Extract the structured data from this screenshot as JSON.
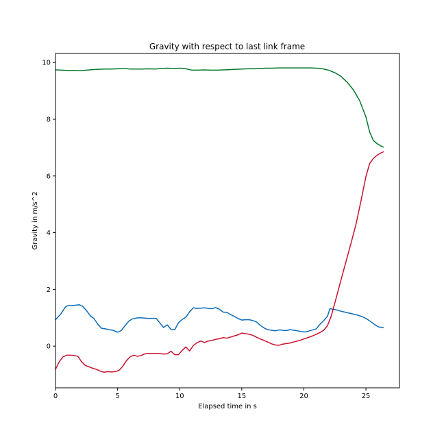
{
  "chart_data": {
    "type": "line",
    "title": "Gravity with respect to last link frame",
    "xlabel": "Elapsed time in s",
    "ylabel": "Gravity in m/s^2",
    "xlim": [
      0,
      27.7
    ],
    "ylim": [
      -1.47,
      10.32
    ],
    "xticks": [
      0,
      5,
      10,
      15,
      20,
      25
    ],
    "yticks": [
      0,
      2,
      4,
      6,
      8,
      10
    ],
    "grid": false,
    "legend": "none",
    "series": [
      {
        "color": "#0a6bb8",
        "x": [
          0,
          0.4,
          0.8,
          1.0,
          1.3,
          1.6,
          1.9,
          2.2,
          2.5,
          2.8,
          3.1,
          3.4,
          3.7,
          4.0,
          4.3,
          4.6,
          5.0,
          5.3,
          5.6,
          5.9,
          6.2,
          6.5,
          6.8,
          7.1,
          7.4,
          7.8,
          8.1,
          8.4,
          8.7,
          9.0,
          9.3,
          9.6,
          9.9,
          10.2,
          10.5,
          10.8,
          11.1,
          11.4,
          11.7,
          12.0,
          12.3,
          12.6,
          12.9,
          13.2,
          13.5,
          13.8,
          14.1,
          14.4,
          14.7,
          15.0,
          15.3,
          15.6,
          15.9,
          16.2,
          16.5,
          16.8,
          17.1,
          17.4,
          17.7,
          18.0,
          18.3,
          18.6,
          18.9,
          19.2,
          19.5,
          19.8,
          20.1,
          20.4,
          20.7,
          21.0,
          21.3,
          21.6,
          21.9,
          22.1,
          22.4,
          22.7,
          23.0,
          23.3,
          23.6,
          23.9,
          24.2,
          24.5,
          24.8,
          25.1,
          25.4,
          25.7,
          26.0,
          26.4
        ],
        "y": [
          0.93,
          1.12,
          1.38,
          1.43,
          1.43,
          1.44,
          1.46,
          1.4,
          1.25,
          1.07,
          0.97,
          0.78,
          0.63,
          0.61,
          0.58,
          0.56,
          0.49,
          0.55,
          0.72,
          0.88,
          0.96,
          0.99,
          1.0,
          0.99,
          0.98,
          0.98,
          0.98,
          0.82,
          0.66,
          0.75,
          0.59,
          0.58,
          0.82,
          0.94,
          1.02,
          1.21,
          1.35,
          1.33,
          1.34,
          1.35,
          1.33,
          1.32,
          1.36,
          1.3,
          1.2,
          1.19,
          1.11,
          1.05,
          0.97,
          0.92,
          0.93,
          0.93,
          0.9,
          0.85,
          0.73,
          0.64,
          0.58,
          0.56,
          0.54,
          0.57,
          0.56,
          0.55,
          0.58,
          0.56,
          0.54,
          0.51,
          0.5,
          0.53,
          0.57,
          0.61,
          0.77,
          0.9,
          1.05,
          1.32,
          1.3,
          1.27,
          1.23,
          1.2,
          1.17,
          1.14,
          1.11,
          1.07,
          1.02,
          0.95,
          0.86,
          0.76,
          0.68,
          0.65
        ]
      },
      {
        "color": "#00782a",
        "x": [
          0,
          0.5,
          1.0,
          1.5,
          2.0,
          2.5,
          3.0,
          3.5,
          4.0,
          4.5,
          5.0,
          5.5,
          6.0,
          6.5,
          7.0,
          7.5,
          8.0,
          8.5,
          9.0,
          9.5,
          10.0,
          10.5,
          11.0,
          11.5,
          12.0,
          12.5,
          13.0,
          13.5,
          14.0,
          14.5,
          15.0,
          15.5,
          16.0,
          16.5,
          17.0,
          17.5,
          18.0,
          18.5,
          19.0,
          19.5,
          20.0,
          20.5,
          21.0,
          21.5,
          22.0,
          22.5,
          23.0,
          23.5,
          24.0,
          24.5,
          25.0,
          25.3,
          25.6,
          25.9,
          26.2,
          26.4
        ],
        "y": [
          9.74,
          9.73,
          9.72,
          9.72,
          9.71,
          9.73,
          9.75,
          9.76,
          9.77,
          9.77,
          9.78,
          9.79,
          9.77,
          9.77,
          9.77,
          9.78,
          9.77,
          9.79,
          9.8,
          9.79,
          9.8,
          9.78,
          9.73,
          9.73,
          9.74,
          9.73,
          9.73,
          9.74,
          9.75,
          9.76,
          9.77,
          9.78,
          9.78,
          9.79,
          9.8,
          9.8,
          9.81,
          9.81,
          9.81,
          9.81,
          9.81,
          9.81,
          9.8,
          9.78,
          9.73,
          9.64,
          9.51,
          9.3,
          9.03,
          8.65,
          8.08,
          7.55,
          7.25,
          7.14,
          7.06,
          7.02
        ]
      },
      {
        "color": "#c8102e",
        "x": [
          0,
          0.3,
          0.6,
          0.9,
          1.2,
          1.5,
          1.8,
          2.1,
          2.4,
          2.7,
          3.0,
          3.3,
          3.6,
          3.9,
          4.2,
          4.5,
          4.8,
          5.1,
          5.4,
          5.7,
          6.0,
          6.3,
          6.6,
          6.9,
          7.2,
          7.5,
          7.8,
          8.1,
          8.4,
          8.7,
          9.0,
          9.3,
          9.6,
          9.9,
          10.2,
          10.5,
          10.8,
          11.1,
          11.4,
          11.7,
          12.0,
          12.3,
          12.6,
          12.9,
          13.2,
          13.5,
          13.8,
          14.1,
          14.4,
          14.7,
          15.0,
          15.3,
          15.6,
          15.9,
          16.2,
          16.5,
          16.8,
          17.1,
          17.4,
          17.7,
          18.0,
          18.3,
          18.6,
          18.9,
          19.2,
          19.5,
          19.8,
          20.1,
          20.4,
          20.7,
          21.0,
          21.3,
          21.6,
          21.9,
          22.2,
          22.6,
          23.0,
          23.4,
          23.8,
          24.2,
          24.6,
          25.0,
          25.3,
          25.6,
          25.9,
          26.2,
          26.4
        ],
        "y": [
          -0.82,
          -0.55,
          -0.38,
          -0.32,
          -0.32,
          -0.33,
          -0.36,
          -0.55,
          -0.68,
          -0.73,
          -0.78,
          -0.82,
          -0.88,
          -0.92,
          -0.9,
          -0.91,
          -0.9,
          -0.86,
          -0.72,
          -0.52,
          -0.38,
          -0.32,
          -0.36,
          -0.33,
          -0.27,
          -0.26,
          -0.26,
          -0.26,
          -0.26,
          -0.28,
          -0.27,
          -0.18,
          -0.3,
          -0.3,
          -0.15,
          -0.03,
          -0.17,
          0.02,
          0.12,
          0.18,
          0.13,
          0.18,
          0.2,
          0.24,
          0.26,
          0.3,
          0.28,
          0.32,
          0.36,
          0.4,
          0.46,
          0.44,
          0.42,
          0.38,
          0.31,
          0.25,
          0.2,
          0.14,
          0.08,
          0.04,
          0.03,
          0.07,
          0.09,
          0.11,
          0.15,
          0.18,
          0.22,
          0.27,
          0.31,
          0.36,
          0.42,
          0.48,
          0.56,
          0.72,
          1.05,
          1.69,
          2.35,
          2.99,
          3.63,
          4.3,
          5.12,
          5.98,
          6.44,
          6.62,
          6.73,
          6.81,
          6.85
        ]
      }
    ]
  }
}
